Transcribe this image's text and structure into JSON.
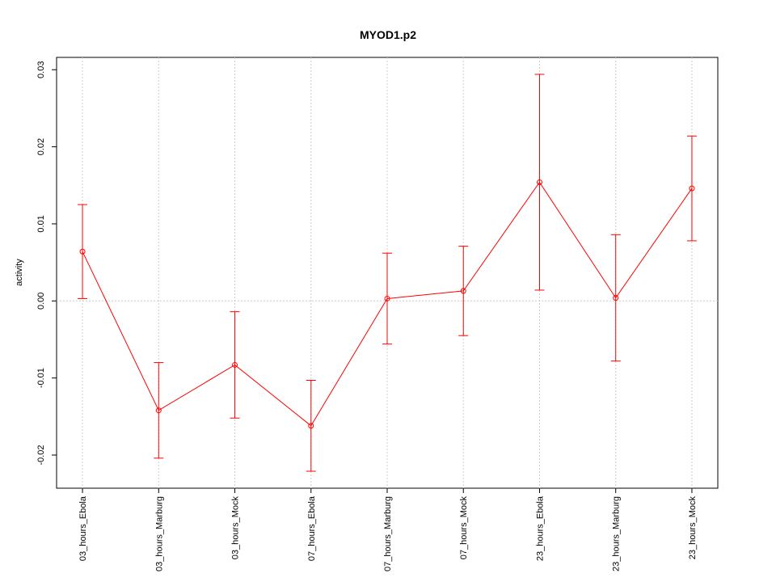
{
  "chart_data": {
    "type": "line",
    "title": "MYOD1.p2",
    "y_label": "activity",
    "categories": [
      "03_hours_Ebola",
      "03_hours_Marburg",
      "03_hours_Mock",
      "07_hours_Ebola",
      "07_hours_Marburg",
      "07_hours_Mock",
      "23_hours_Ebola",
      "23_hours_Marburg",
      "23_hours_Mock"
    ],
    "series": [
      {
        "color": "#ff0000",
        "values": [
          0.0064,
          -0.0142,
          -0.0083,
          -0.0162,
          0.0003,
          0.0013,
          0.0154,
          0.0004,
          0.0146
        ],
        "errors": [
          0.0061,
          0.0062,
          0.0069,
          0.0059,
          0.0059,
          0.0058,
          0.014,
          0.0082,
          0.0068
        ]
      }
    ],
    "ylim": [
      -0.0243,
      0.0316
    ],
    "yticks": [
      -0.02,
      -0.01,
      {
        "value": 0,
        "label": "0.00"
      },
      0.01,
      0.02,
      0.03
    ],
    "reference_line": 0,
    "grid": true
  }
}
